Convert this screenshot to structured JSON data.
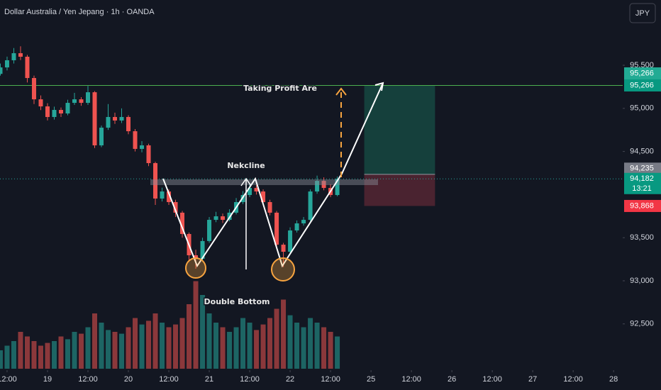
{
  "header": {
    "symbol": "Dollar Australia / Yen Jepang · 1h · OANDA",
    "currency_button": "JPY"
  },
  "chart_data": {
    "type": "candlestick",
    "x": [
      -2,
      0,
      2,
      4,
      6,
      8,
      10,
      12,
      14,
      16,
      18,
      20,
      22,
      24,
      26,
      28,
      30,
      32,
      34,
      36,
      38,
      40,
      42,
      44,
      46,
      48,
      50,
      52,
      54,
      56,
      58,
      60,
      62,
      64,
      66,
      68,
      70,
      72,
      74,
      76,
      78,
      80,
      82,
      84,
      86,
      88,
      90,
      92,
      94,
      96,
      98
    ],
    "open": [
      95400,
      95475,
      95558,
      95640,
      95599,
      95352,
      95105,
      95023,
      94900,
      94982,
      94941,
      95064,
      95105,
      95064,
      95187,
      94571,
      94776,
      94900,
      94859,
      94900,
      94735,
      94530,
      94571,
      94365,
      93954,
      94036,
      93913,
      93790,
      93543,
      93296,
      93255,
      93461,
      93707,
      93748,
      93707,
      93790,
      93913,
      93995,
      94077,
      94036,
      93913,
      93790,
      93419,
      93337,
      93584,
      93666,
      93707,
      94036,
      94159,
      94077,
      93995
    ],
    "high": [
      95520,
      95600,
      95700,
      95720,
      95620,
      95380,
      95150,
      95060,
      95020,
      95010,
      95100,
      95180,
      95130,
      95260,
      95200,
      94800,
      95050,
      94950,
      95000,
      94920,
      94760,
      94620,
      94590,
      94380,
      94080,
      94060,
      93940,
      93810,
      93560,
      93360,
      93500,
      93740,
      93800,
      93780,
      93830,
      93960,
      94040,
      94120,
      94110,
      94060,
      93940,
      93810,
      93440,
      93620,
      93700,
      93740,
      94060,
      94220,
      94200,
      94120,
      94210
    ],
    "low": [
      95380,
      95440,
      95520,
      95560,
      95300,
      95050,
      94980,
      94860,
      94870,
      94900,
      94920,
      95040,
      95030,
      95040,
      94540,
      94550,
      94750,
      94820,
      94830,
      94700,
      94500,
      94490,
      94330,
      93880,
      93920,
      93880,
      93740,
      93500,
      93220,
      93140,
      93230,
      93440,
      93680,
      93670,
      93690,
      93770,
      93890,
      93970,
      94000,
      93880,
      93760,
      93380,
      93160,
      93310,
      93560,
      93640,
      93690,
      94010,
      94050,
      93970,
      93980
    ],
    "close": [
      95475,
      95558,
      95640,
      95599,
      95352,
      95105,
      95023,
      94900,
      94982,
      94941,
      95064,
      95105,
      95064,
      95187,
      94571,
      94776,
      94900,
      94859,
      94900,
      94735,
      94530,
      94571,
      94365,
      93954,
      94036,
      93913,
      93790,
      93543,
      93296,
      93255,
      93461,
      93707,
      93748,
      93707,
      93790,
      93913,
      93995,
      94077,
      94036,
      93913,
      93790,
      93419,
      93337,
      93584,
      93666,
      93707,
      94036,
      94159,
      94077,
      93995,
      94182
    ],
    "volume": [
      20,
      25,
      30,
      40,
      35,
      30,
      25,
      28,
      30,
      35,
      32,
      40,
      38,
      45,
      60,
      50,
      42,
      40,
      38,
      45,
      55,
      48,
      52,
      60,
      50,
      45,
      48,
      55,
      70,
      95,
      80,
      60,
      50,
      45,
      40,
      45,
      55,
      50,
      42,
      48,
      55,
      65,
      75,
      58,
      50,
      45,
      55,
      50,
      45,
      40,
      35
    ],
    "volume_lim": [
      0,
      100
    ],
    "up_color": "#26a69a",
    "down_color": "#ef5350",
    "xlim": [
      -2.1,
      182.7
    ],
    "xticks": [
      {
        "value": 0,
        "label": "12:00"
      },
      {
        "value": 12,
        "label": "19"
      },
      {
        "value": 24,
        "label": "12:00"
      },
      {
        "value": 36,
        "label": "20"
      },
      {
        "value": 48,
        "label": "12:00"
      },
      {
        "value": 60,
        "label": "21"
      },
      {
        "value": 72,
        "label": "12:00"
      },
      {
        "value": 84,
        "label": "22"
      },
      {
        "value": 96,
        "label": "12:00"
      },
      {
        "value": 108,
        "label": "25"
      },
      {
        "value": 120,
        "label": "12:00"
      },
      {
        "value": 132,
        "label": "26"
      },
      {
        "value": 144,
        "label": "12:00"
      },
      {
        "value": 156,
        "label": "27"
      },
      {
        "value": 168,
        "label": "12:00"
      },
      {
        "value": 180,
        "label": "28"
      }
    ],
    "ylim": [
      91980,
      96257
    ],
    "yticks": [
      {
        "value": 95500,
        "label": "95,500"
      },
      {
        "value": 95000,
        "label": "95,000"
      },
      {
        "value": 94500,
        "label": "94,500"
      },
      {
        "value": 93500,
        "label": "93,500"
      },
      {
        "value": 93000,
        "label": "93,000"
      },
      {
        "value": 92500,
        "label": "92,500"
      }
    ],
    "lines": [
      {
        "value": 95266,
        "color": "#4caf50",
        "style": "solid"
      },
      {
        "value": 94182,
        "color": "#26a69a",
        "style": "dotted"
      }
    ],
    "position": {
      "start": 106,
      "end": 127,
      "entry": 94235,
      "target": 95266,
      "stop": 93868,
      "target_color": "#15403c",
      "stop_color": "#4a2330"
    },
    "price_labels": [
      {
        "value": 95266,
        "label": "95,266",
        "color": "#22ab94",
        "offset": -17
      },
      {
        "value": 95266,
        "label": "95,266",
        "color": "#089981"
      },
      {
        "value": 94235,
        "label": "94,235",
        "color": "#787b86",
        "offset": -8
      },
      {
        "value": 94182,
        "label": "94,182",
        "color": "#089981",
        "countdown": "13:21"
      },
      {
        "value": 93868,
        "label": "93,868",
        "color": "#f23645"
      }
    ],
    "annotations": {
      "take_profit": "Taking Profit Are",
      "neckline": "Nekcline",
      "pattern": "Double Bottom"
    }
  }
}
